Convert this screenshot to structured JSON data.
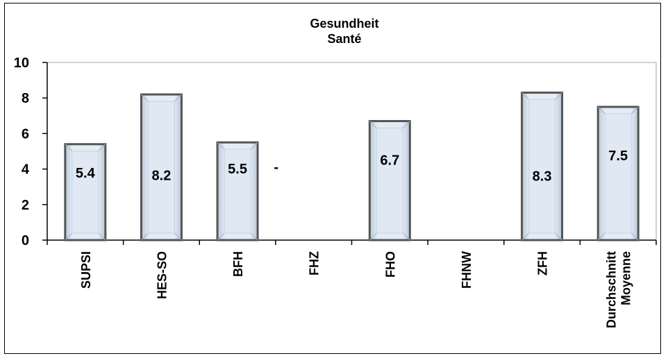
{
  "chart_data": {
    "type": "bar",
    "title": [
      "Gesundheit",
      "Santé"
    ],
    "categories": [
      [
        "SUPSI"
      ],
      [
        "HES-SO"
      ],
      [
        "BFH"
      ],
      [
        "FHZ"
      ],
      [
        "FHO"
      ],
      [
        "FHNW"
      ],
      [
        "ZFH"
      ],
      [
        "Durchschnitt",
        "Moyenne"
      ]
    ],
    "values": [
      5.4,
      8.2,
      5.5,
      null,
      6.7,
      null,
      8.3,
      7.5
    ],
    "data_labels": [
      "5.4",
      "8.2",
      "5.5",
      "-",
      "6.7",
      "",
      "8.3",
      "7.5"
    ],
    "xlabel": "",
    "ylabel": "",
    "ylim": [
      0,
      10
    ],
    "yticks": [
      0,
      2,
      4,
      6,
      8,
      10
    ],
    "grid": false,
    "legend": "none",
    "colors": {
      "bar_fill": "#dfe8f3",
      "bar_edge": "#555555",
      "plot_border": "#a6a6a6"
    }
  }
}
